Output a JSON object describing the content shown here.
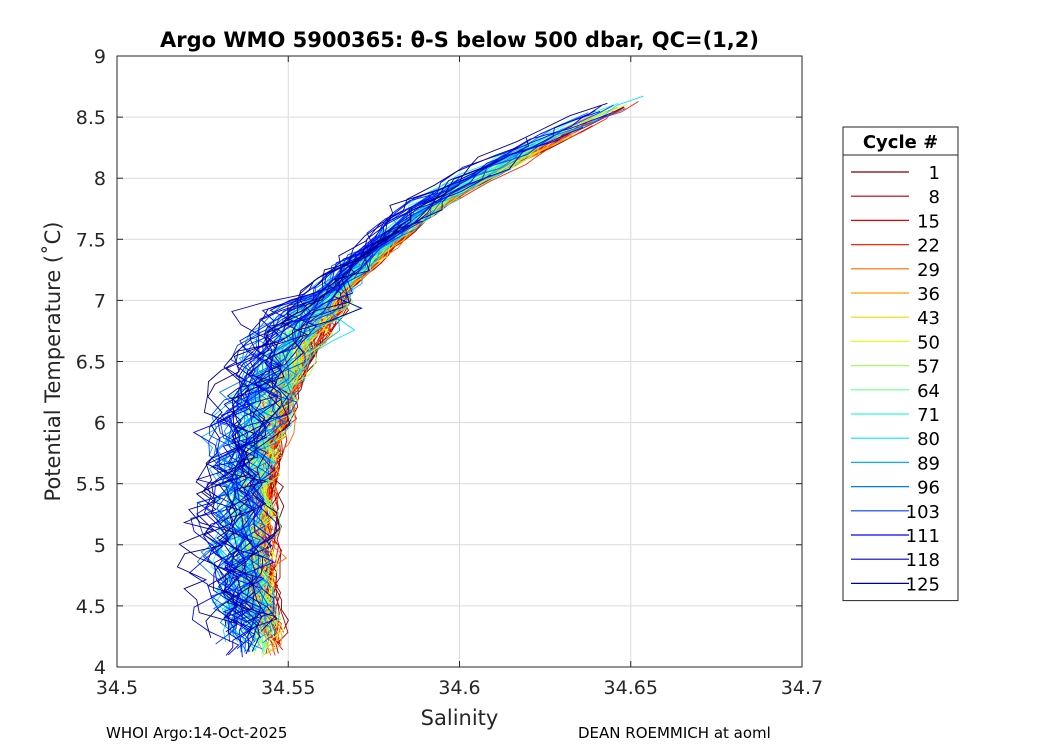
{
  "chart_data": {
    "type": "line",
    "title": "Argo WMO 5900365: θ-S below 500 dbar,  QC=(1,2)",
    "xlabel": "Salinity",
    "ylabel": "Potential Temperature (˚C)",
    "xlim": [
      34.5,
      34.7
    ],
    "ylim": [
      4,
      9
    ],
    "xticks": [
      "34.5",
      "34.55",
      "34.6",
      "34.65",
      "34.7"
    ],
    "yticks": [
      "4",
      "4.5",
      "5",
      "5.5",
      "6",
      "6.5",
      "7",
      "7.5",
      "8",
      "8.5",
      "9"
    ],
    "grid": true,
    "legend": {
      "title": "Cycle #",
      "position": "right",
      "entries": [
        {
          "label": "1",
          "color": "#7f0000"
        },
        {
          "label": "8",
          "color": "#b30000"
        },
        {
          "label": "15",
          "color": "#e60000"
        },
        {
          "label": "22",
          "color": "#ff2600"
        },
        {
          "label": "29",
          "color": "#ff6a00"
        },
        {
          "label": "36",
          "color": "#ff9f00"
        },
        {
          "label": "43",
          "color": "#ffd400"
        },
        {
          "label": "50",
          "color": "#e3ff1b"
        },
        {
          "label": "57",
          "color": "#a6ff58"
        },
        {
          "label": "64",
          "color": "#6bff94"
        },
        {
          "label": "71",
          "color": "#2fffd0"
        },
        {
          "label": "80",
          "color": "#00e4ff"
        },
        {
          "label": "89",
          "color": "#00b0ff"
        },
        {
          "label": "96",
          "color": "#0078ff"
        },
        {
          "label": "103",
          "color": "#0040ff"
        },
        {
          "label": "111",
          "color": "#0008ff"
        },
        {
          "label": "118",
          "color": "#0000cc"
        },
        {
          "label": "125",
          "color": "#00008f"
        }
      ]
    },
    "mean_profile": {
      "salinity": [
        34.5415,
        34.539,
        34.538,
        34.5385,
        34.5405,
        34.5445,
        34.551,
        34.561,
        34.575,
        34.593,
        34.612,
        34.632,
        34.655
      ],
      "theta": [
        4.2,
        4.6,
        5.0,
        5.4,
        5.8,
        6.2,
        6.6,
        7.0,
        7.4,
        7.8,
        8.1,
        8.4,
        8.7
      ]
    },
    "profile_count": 126
  },
  "footer": {
    "left": "WHOI Argo:14-Oct-2025",
    "right": "DEAN ROEMMICH at aoml"
  }
}
